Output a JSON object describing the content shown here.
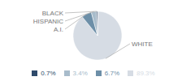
{
  "chart_data": {
    "type": "pie",
    "categories": [
      "WHITE",
      "A.I.",
      "HISPANIC",
      "BLACK"
    ],
    "values": [
      89.3,
      6.7,
      3.4,
      0.7
    ],
    "value_labels": [
      "89.3%",
      "6.7%",
      "3.4%",
      "0.7%"
    ],
    "colors": [
      "#d6dce4",
      "#6d8fa8",
      "#a8bccb",
      "#2e4a6b"
    ],
    "legend": "bottom"
  }
}
